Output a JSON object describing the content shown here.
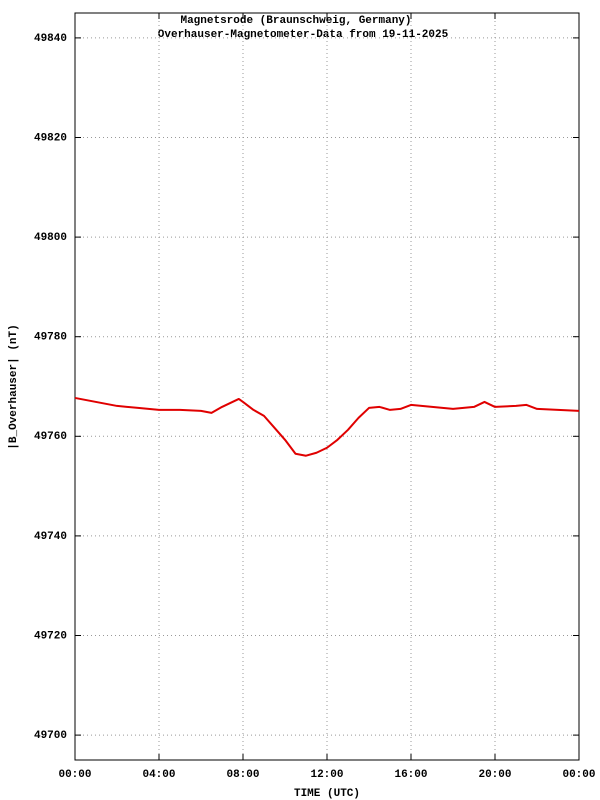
{
  "chart_data": {
    "type": "line",
    "title": "Magnetsrode (Braunschweig, Germany)",
    "subtitle": "Overhauser-Magnetometer-Data from 19-11-2025",
    "xlabel": "TIME (UTC)",
    "ylabel": "|B_Overhauser| (nT)",
    "x": [
      0,
      1,
      2,
      3,
      4,
      5,
      6,
      6.5,
      7,
      7.5,
      7.8,
      8,
      8.5,
      9,
      9.5,
      10,
      10.5,
      11,
      11.5,
      12,
      12.5,
      13,
      13.5,
      14,
      14.5,
      15,
      15.5,
      16,
      17,
      18,
      19,
      19.5,
      20,
      21,
      21.5,
      22,
      23,
      24
    ],
    "series": [
      {
        "name": "|B_Overhauser|",
        "color": "#e00000",
        "values": [
          49767.7,
          49766.9,
          49766.1,
          49765.7,
          49765.3,
          49765.3,
          49765.1,
          49764.7,
          49765.9,
          49766.9,
          49767.5,
          49766.9,
          49765.3,
          49764.1,
          49761.7,
          49759.3,
          49756.5,
          49756.1,
          49756.7,
          49757.7,
          49759.3,
          49761.3,
          49763.7,
          49765.7,
          49765.9,
          49765.3,
          49765.5,
          49766.3,
          49765.9,
          49765.5,
          49765.9,
          49766.9,
          49765.9,
          49766.1,
          49766.3,
          49765.5,
          49765.3,
          49765.1
        ]
      }
    ],
    "xlim": [
      0,
      24
    ],
    "xticks": [
      {
        "value": 0,
        "label": "00:00"
      },
      {
        "value": 4,
        "label": "04:00"
      },
      {
        "value": 8,
        "label": "08:00"
      },
      {
        "value": 12,
        "label": "12:00"
      },
      {
        "value": 16,
        "label": "16:00"
      },
      {
        "value": 20,
        "label": "20:00"
      },
      {
        "value": 24,
        "label": "00:00"
      }
    ],
    "ylim": [
      49695,
      49845
    ],
    "yticks": [
      49700,
      49720,
      49740,
      49760,
      49780,
      49800,
      49820,
      49840
    ],
    "grid": true
  }
}
